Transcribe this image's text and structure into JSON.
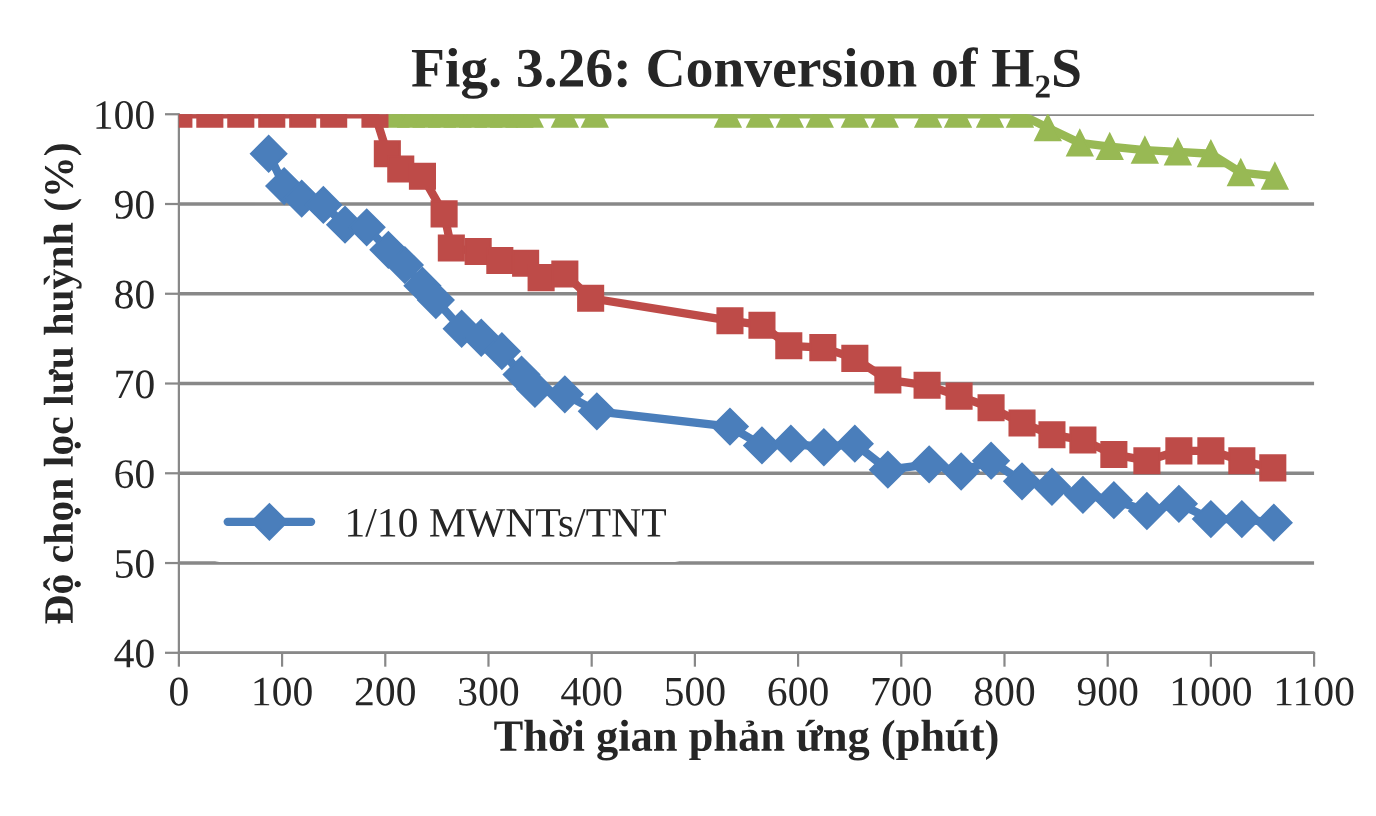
{
  "chart_data": {
    "type": "line",
    "title": "Fig. 3.26: Conversion of H₂S",
    "xlabel": "Thời gian phản ứng (phút)",
    "ylabel": "Độ chọn lọc lưu huỳnh (%)",
    "xlim": [
      0,
      1100
    ],
    "xticks": [
      0,
      100,
      200,
      300,
      400,
      500,
      600,
      700,
      800,
      900,
      1000,
      1100
    ],
    "ylim": [
      40,
      100
    ],
    "yticks": [
      40,
      50,
      60,
      70,
      80,
      90,
      100
    ],
    "grid": "y",
    "legend": "lower left",
    "line_style": "solid",
    "series": [
      {
        "name": "1/10 MWNTs/TNT",
        "color": "#4a7ebb",
        "marker": "diamond",
        "x": [
          87,
          102,
          119,
          140,
          161,
          182,
          203,
          219,
          236,
          249,
          274,
          293,
          313,
          332,
          345,
          374,
          405,
          534,
          565,
          593,
          625,
          655,
          687,
          727,
          758,
          787,
          817,
          846,
          876,
          906,
          938,
          969,
          1000,
          1030,
          1061
        ],
        "values": [
          95.6,
          92,
          90.6,
          89.9,
          87.7,
          87.4,
          84.9,
          83.2,
          80.9,
          79.3,
          76.1,
          75.1,
          73.6,
          71,
          69.4,
          68.8,
          66.9,
          65.2,
          63.1,
          63.3,
          62.9,
          63.3,
          60.4,
          61,
          60.2,
          61.4,
          59.1,
          58.5,
          57.6,
          57,
          55.8,
          56.6,
          54.9,
          54.9,
          54.5
        ]
      },
      {
        "color": "#be4b48",
        "marker": "square",
        "x": [
          0,
          30,
          60,
          90,
          120,
          150,
          190,
          202,
          215,
          236,
          257,
          264,
          290,
          311,
          336,
          351,
          374,
          399,
          534,
          565,
          591,
          624,
          655,
          687,
          725,
          756,
          787,
          817,
          846,
          876,
          906,
          938,
          969,
          1000,
          1030,
          1060
        ],
        "values": [
          100,
          100,
          100,
          100,
          100,
          100,
          100,
          95.6,
          93.9,
          93.1,
          88.9,
          85.1,
          84.7,
          83.7,
          83.4,
          81.8,
          82.2,
          79.5,
          77,
          76.5,
          74.2,
          74,
          72.8,
          70.4,
          69.8,
          68.6,
          67.3,
          65.6,
          64.3,
          63.7,
          62.1,
          61.4,
          62.5,
          62.5,
          61.4,
          60.6
        ]
      },
      {
        "color": "#98b954",
        "marker": "triangle",
        "x": [
          210,
          225,
          240,
          255,
          270,
          285,
          300,
          315,
          330,
          340,
          374,
          403,
          532,
          563,
          592,
          621,
          655,
          684,
          726,
          755,
          786,
          815,
          842,
          873,
          902,
          936,
          968,
          1000,
          1029,
          1062
        ],
        "values": [
          100,
          100,
          100,
          100,
          100,
          100,
          100,
          100,
          100,
          100,
          100,
          100,
          100,
          100,
          100,
          100,
          100,
          100,
          100,
          100,
          100,
          100,
          98.5,
          96.8,
          96.4,
          96,
          95.8,
          95.6,
          93.5,
          93.1
        ]
      }
    ]
  }
}
